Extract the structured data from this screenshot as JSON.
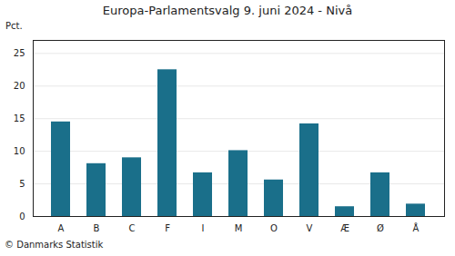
{
  "chart_data": {
    "type": "bar",
    "title": "Europa-Parlamentsvalg 9. juni 2024 - Nivå",
    "categories": [
      "A",
      "B",
      "C",
      "F",
      "I",
      "M",
      "O",
      "V",
      "Æ",
      "Ø",
      "Å"
    ],
    "values": [
      14.5,
      8.1,
      9.0,
      22.5,
      6.7,
      10.1,
      5.6,
      14.2,
      1.5,
      6.7,
      1.9
    ],
    "color": "#1a6f8a",
    "ylabel": "Pct.",
    "ylim": [
      0,
      27
    ],
    "yticks": [
      0,
      5,
      10,
      15,
      20,
      25
    ],
    "grid": true,
    "footnote": "© Danmarks Statistik"
  }
}
